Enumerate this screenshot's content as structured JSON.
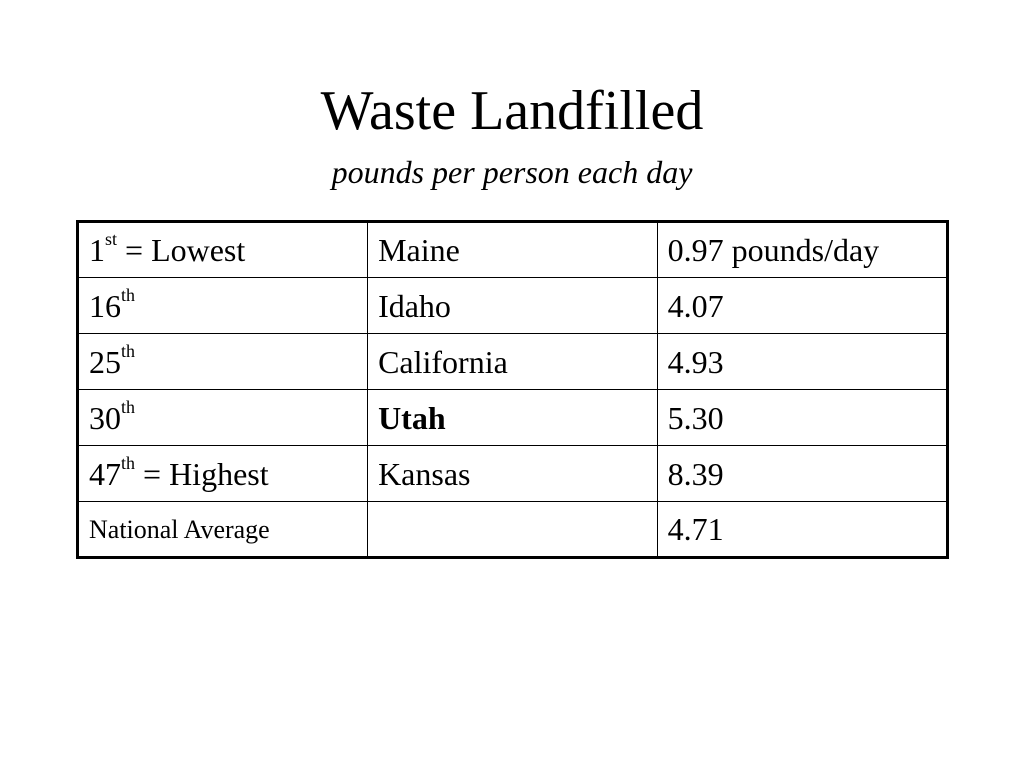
{
  "slide": {
    "title": "Waste Landfilled",
    "subtitle": "pounds per person each day"
  },
  "table": {
    "rows": [
      {
        "rank_num": "1",
        "rank_sup": "st",
        "rank_suffix": " = Lowest",
        "state": "Maine",
        "value": "0.97 pounds/day"
      },
      {
        "rank_num": "16",
        "rank_sup": "th",
        "rank_suffix": "",
        "state": "Idaho",
        "value": "4.07"
      },
      {
        "rank_num": "25",
        "rank_sup": "th",
        "rank_suffix": "",
        "state": "California",
        "value": "4.93"
      },
      {
        "rank_num": "30",
        "rank_sup": "th",
        "rank_suffix": "",
        "state": "Utah",
        "value": "5.30"
      },
      {
        "rank_num": "47",
        "rank_sup": "th",
        "rank_suffix": " = Highest",
        "state": "Kansas",
        "value": "8.39"
      }
    ],
    "average": {
      "label": "National Average",
      "state": "",
      "value": "4.71"
    }
  }
}
